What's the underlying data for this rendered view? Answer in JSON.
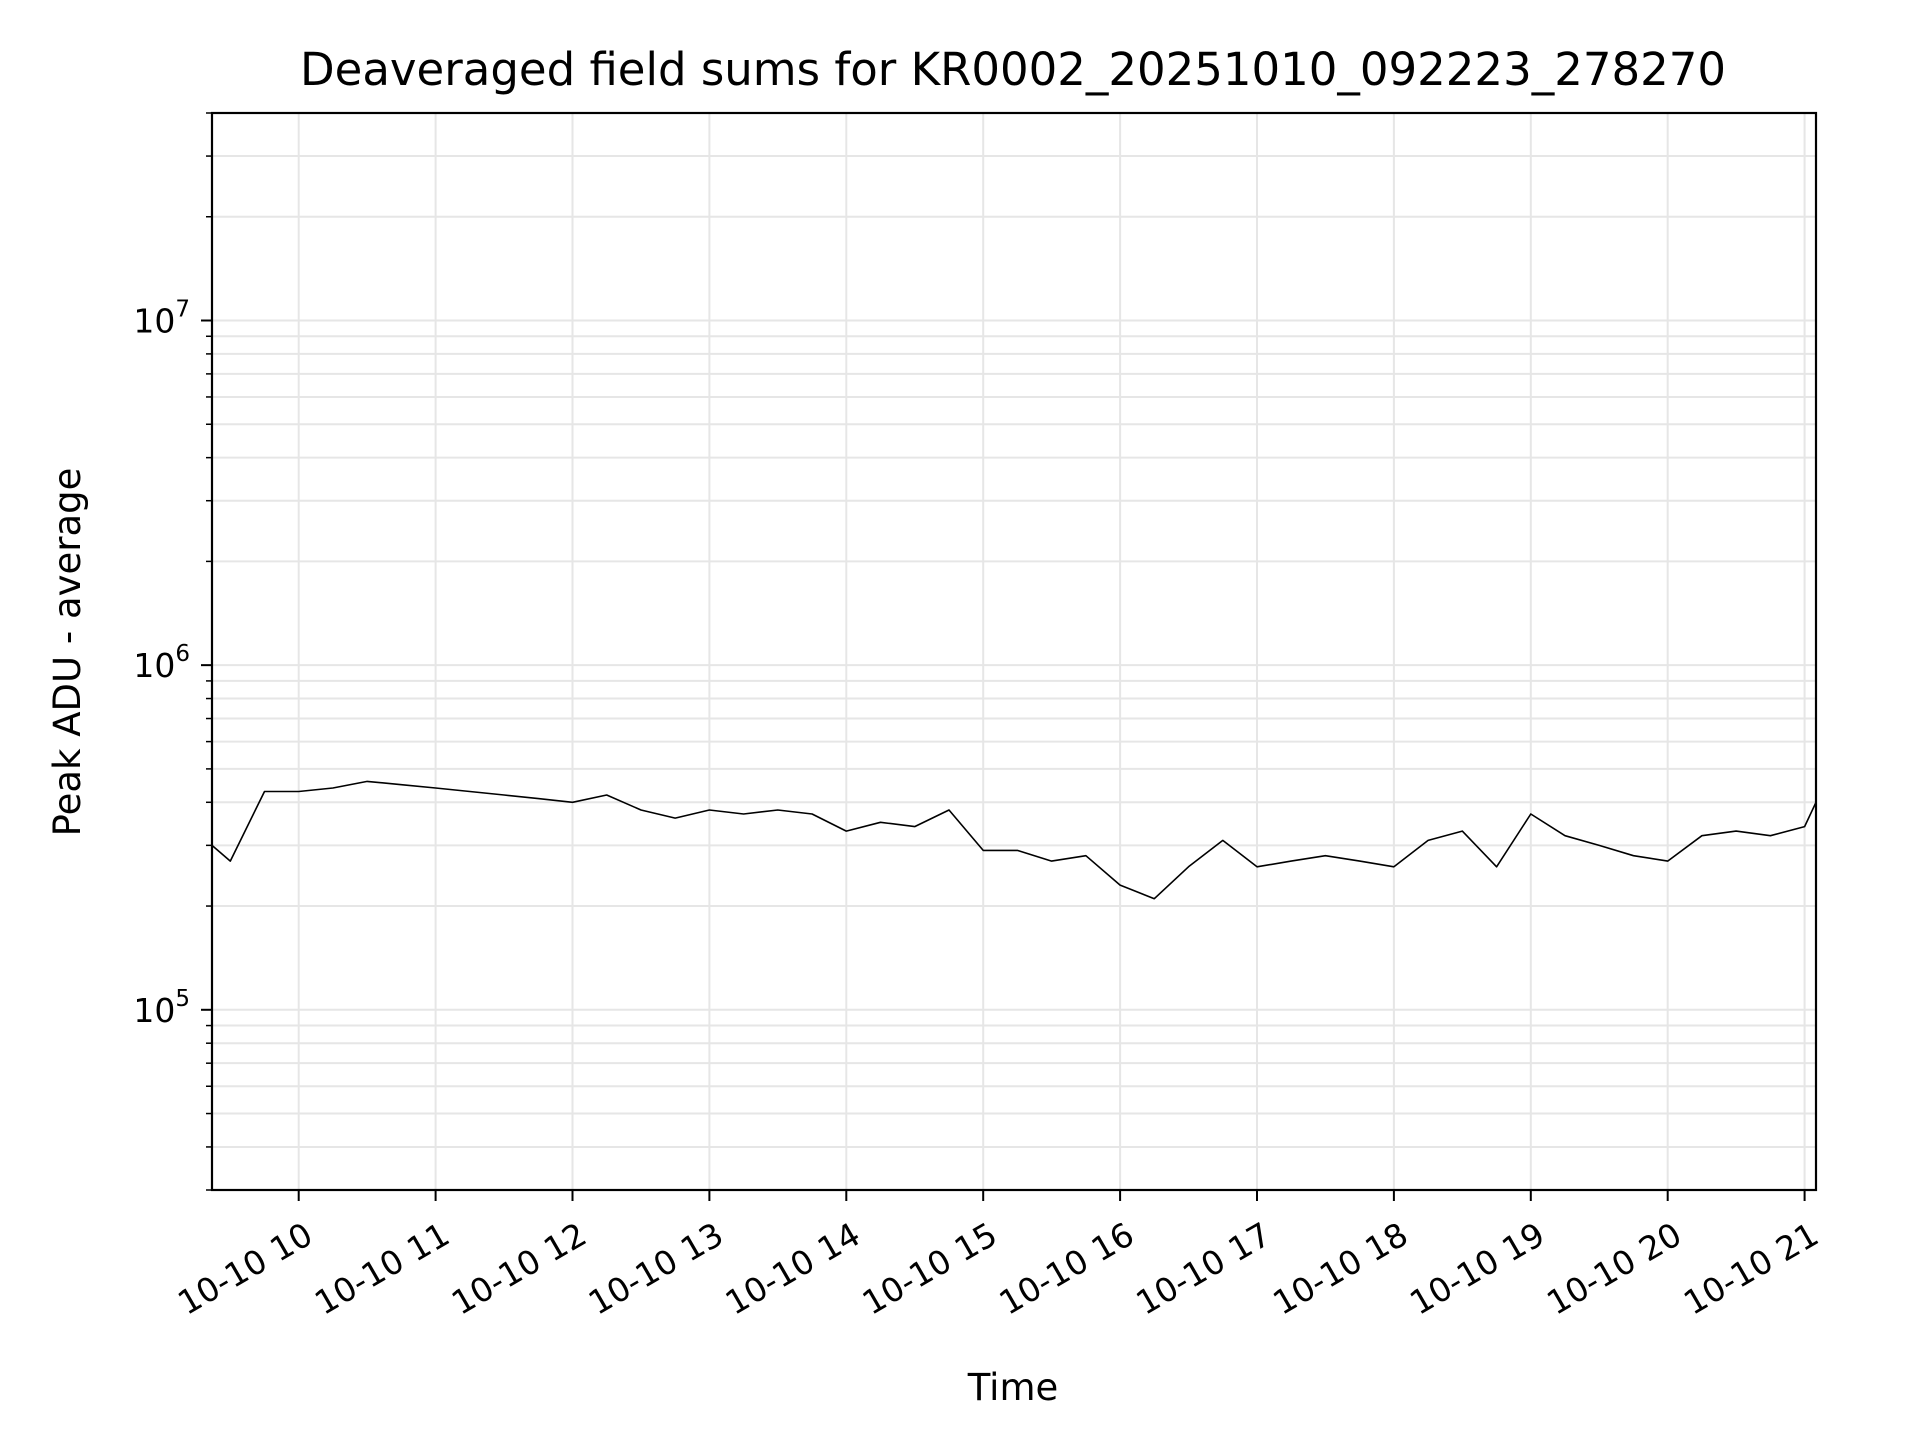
{
  "chart_data": {
    "type": "line",
    "title": "Deaveraged field sums for KR0002_20251010_092223_278270",
    "xlabel": "Time",
    "ylabel": "Peak ADU - average",
    "x_axis": {
      "kind": "datetime",
      "range": [
        "2025-10-10 09:22",
        "2025-10-10 21:05"
      ],
      "tick_values": [
        "2025-10-10 10:00",
        "2025-10-10 11:00",
        "2025-10-10 12:00",
        "2025-10-10 13:00",
        "2025-10-10 14:00",
        "2025-10-10 15:00",
        "2025-10-10 16:00",
        "2025-10-10 17:00",
        "2025-10-10 18:00",
        "2025-10-10 19:00",
        "2025-10-10 20:00",
        "2025-10-10 21:00"
      ],
      "tick_labels": [
        "10-10 10",
        "10-10 11",
        "10-10 12",
        "10-10 13",
        "10-10 14",
        "10-10 15",
        "10-10 16",
        "10-10 17",
        "10-10 18",
        "10-10 19",
        "10-10 20",
        "10-10 21"
      ]
    },
    "y_axis": {
      "scale": "log",
      "range": [
        30000,
        40000000
      ],
      "tick_values": [
        100000,
        1000000,
        10000000
      ],
      "tick_labels": [
        {
          "base": "10",
          "exp": "5"
        },
        {
          "base": "10",
          "exp": "6"
        },
        {
          "base": "10",
          "exp": "7"
        }
      ]
    },
    "grid": true,
    "line_color": "#000000",
    "grid_color": "#e6e6e6",
    "series": [
      {
        "x": [
          "2025-10-10 09:22",
          "2025-10-10 09:30",
          "2025-10-10 09:45",
          "2025-10-10 10:00",
          "2025-10-10 10:15",
          "2025-10-10 10:30",
          "2025-10-10 10:45",
          "2025-10-10 11:00",
          "2025-10-10 11:15",
          "2025-10-10 11:30",
          "2025-10-10 11:45",
          "2025-10-10 12:00",
          "2025-10-10 12:15",
          "2025-10-10 12:30",
          "2025-10-10 12:45",
          "2025-10-10 13:00",
          "2025-10-10 13:15",
          "2025-10-10 13:30",
          "2025-10-10 13:45",
          "2025-10-10 14:00",
          "2025-10-10 14:15",
          "2025-10-10 14:30",
          "2025-10-10 14:45",
          "2025-10-10 15:00",
          "2025-10-10 15:15",
          "2025-10-10 15:30",
          "2025-10-10 15:45",
          "2025-10-10 16:00",
          "2025-10-10 16:15",
          "2025-10-10 16:30",
          "2025-10-10 16:45",
          "2025-10-10 17:00",
          "2025-10-10 17:15",
          "2025-10-10 17:30",
          "2025-10-10 17:45",
          "2025-10-10 18:00",
          "2025-10-10 18:15",
          "2025-10-10 18:30",
          "2025-10-10 18:45",
          "2025-10-10 19:00",
          "2025-10-10 19:15",
          "2025-10-10 19:30",
          "2025-10-10 19:45",
          "2025-10-10 20:00",
          "2025-10-10 20:15",
          "2025-10-10 20:30",
          "2025-10-10 20:45",
          "2025-10-10 21:00",
          "2025-10-10 21:05"
        ],
        "y": [
          300000,
          270000,
          430000,
          430000,
          440000,
          460000,
          450000,
          440000,
          430000,
          420000,
          410000,
          400000,
          420000,
          380000,
          360000,
          380000,
          370000,
          380000,
          370000,
          330000,
          350000,
          340000,
          380000,
          290000,
          290000,
          270000,
          280000,
          230000,
          210000,
          260000,
          310000,
          260000,
          270000,
          280000,
          270000,
          260000,
          310000,
          330000,
          260000,
          370000,
          320000,
          300000,
          280000,
          270000,
          320000,
          330000,
          320000,
          340000,
          400000
        ]
      }
    ]
  }
}
